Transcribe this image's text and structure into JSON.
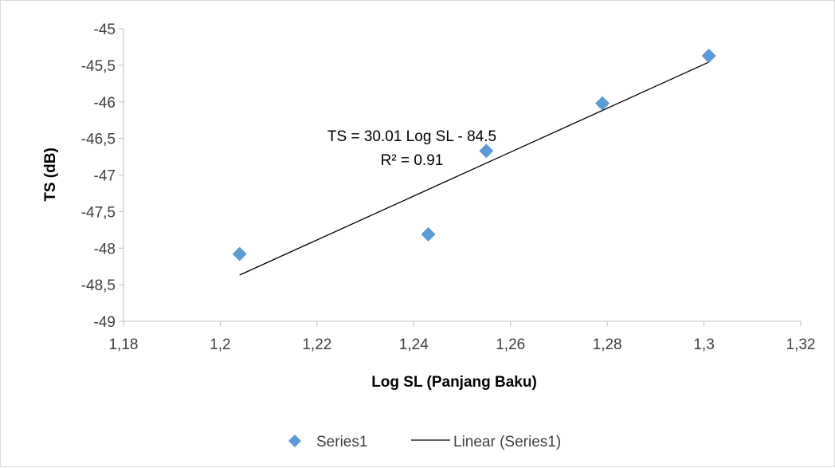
{
  "chart_data": {
    "type": "scatter",
    "xlabel": "Log SL (Panjang Baku)",
    "ylabel": "TS (dB)",
    "xlim": [
      1.18,
      1.32
    ],
    "ylim": [
      -49,
      -45
    ],
    "x_ticks": [
      "1,18",
      "1,2",
      "1,22",
      "1,24",
      "1,26",
      "1,28",
      "1,3",
      "1,32"
    ],
    "y_ticks": [
      "-45",
      "-45,5",
      "-46",
      "-46,5",
      "-47",
      "-47,5",
      "-48",
      "-48,5",
      "-49"
    ],
    "x_tick_values": [
      1.18,
      1.2,
      1.22,
      1.24,
      1.26,
      1.28,
      1.3,
      1.32
    ],
    "y_tick_values": [
      -45,
      -45.5,
      -46,
      -46.5,
      -47,
      -47.5,
      -48,
      -48.5,
      -49
    ],
    "grid": false,
    "series": [
      {
        "name": "Series1",
        "color": "#5b9bd5",
        "marker": "diamond",
        "points": [
          {
            "x": 1.204,
            "y": -48.08
          },
          {
            "x": 1.243,
            "y": -47.81
          },
          {
            "x": 1.255,
            "y": -46.67
          },
          {
            "x": 1.279,
            "y": -46.02
          },
          {
            "x": 1.301,
            "y": -45.37
          }
        ]
      }
    ],
    "trendline": {
      "name": "Linear (Series1)",
      "color": "#000000",
      "slope": 30.01,
      "intercept": -84.5,
      "x_range": [
        1.204,
        1.301
      ]
    },
    "annotation": {
      "line1": "TS = 30.01 Log SL - 84.5",
      "line2": "R² = 0.91"
    },
    "legend_position": "bottom"
  }
}
